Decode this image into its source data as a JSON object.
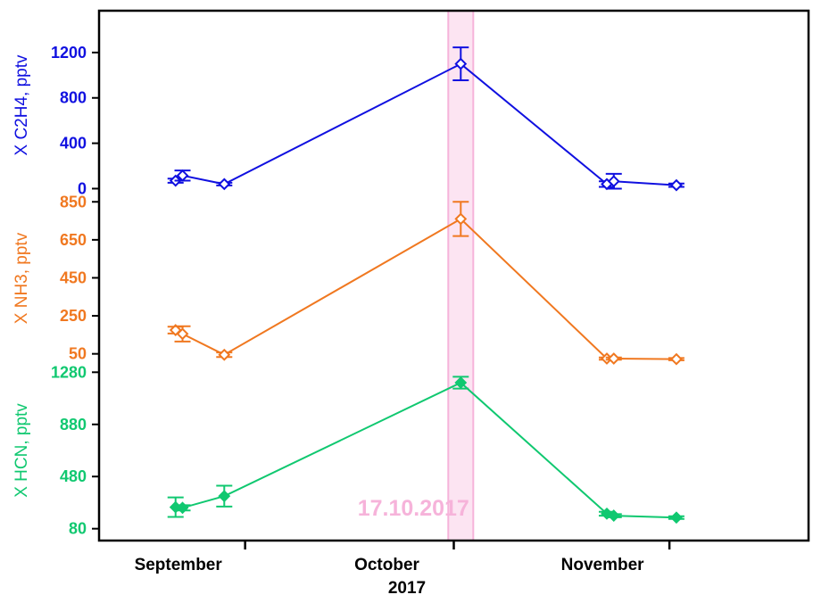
{
  "chart_data": {
    "type": "line",
    "x_axis": {
      "ticks": [
        {
          "label": "September",
          "date": "2017-09-16"
        },
        {
          "label": "October",
          "date": "2017-10-16"
        },
        {
          "label": "November",
          "date": "2017-11-16"
        }
      ],
      "year_label": "2017",
      "range": [
        "2017-08-26",
        "2017-12-06"
      ]
    },
    "highlight": {
      "date": "2017-10-17",
      "label": "17.10.2017",
      "color": "#f6b3da"
    },
    "panels": [
      {
        "ylabel": "X C2H4, pptv",
        "color": "#1010e0",
        "marker": "diamond-open",
        "ylim": [
          -20,
          1490
        ],
        "yticks": [
          0,
          400,
          800,
          1200
        ],
        "points": [
          {
            "date": "2017-09-06",
            "y": 70,
            "err": 18
          },
          {
            "date": "2017-09-07",
            "y": 115,
            "err": 45
          },
          {
            "date": "2017-09-13",
            "y": 40,
            "err": 12
          },
          {
            "date": "2017-10-17",
            "y": 1100,
            "err": 145
          },
          {
            "date": "2017-11-07",
            "y": 40,
            "err": 25
          },
          {
            "date": "2017-11-08",
            "y": 65,
            "err": 65
          },
          {
            "date": "2017-11-17",
            "y": 30,
            "err": 15
          }
        ]
      },
      {
        "ylabel": "X NH3, pptv",
        "color": "#f07820",
        "marker": "diamond-open",
        "ylim": [
          25,
          870
        ],
        "yticks": [
          50,
          250,
          450,
          650,
          850
        ],
        "points": [
          {
            "date": "2017-09-06",
            "y": 175,
            "err": 18
          },
          {
            "date": "2017-09-07",
            "y": 155,
            "err": 40
          },
          {
            "date": "2017-09-13",
            "y": 45,
            "err": 12
          },
          {
            "date": "2017-10-17",
            "y": 760,
            "err": 90
          },
          {
            "date": "2017-11-07",
            "y": 25,
            "err": 6
          },
          {
            "date": "2017-11-08",
            "y": 25,
            "err": 6
          },
          {
            "date": "2017-11-17",
            "y": 22,
            "err": 6
          }
        ]
      },
      {
        "ylabel": "X HCN, pptv",
        "color": "#10c870",
        "marker": "diamond-filled",
        "ylim": [
          30,
          1330
        ],
        "yticks": [
          80,
          480,
          880,
          1280
        ],
        "points": [
          {
            "date": "2017-09-06",
            "y": 245,
            "err": 75
          },
          {
            "date": "2017-09-07",
            "y": 240,
            "err": 20
          },
          {
            "date": "2017-09-13",
            "y": 330,
            "err": 80
          },
          {
            "date": "2017-10-17",
            "y": 1200,
            "err": 45
          },
          {
            "date": "2017-11-07",
            "y": 195,
            "err": 15
          },
          {
            "date": "2017-11-08",
            "y": 180,
            "err": 12
          },
          {
            "date": "2017-11-17",
            "y": 165,
            "err": 10
          }
        ]
      }
    ],
    "grid": false,
    "legend": "none"
  }
}
